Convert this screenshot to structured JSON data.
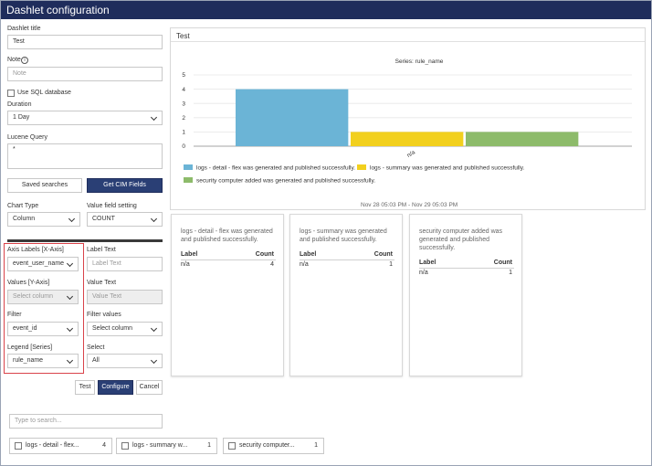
{
  "window": {
    "title": "Dashlet configuration"
  },
  "form": {
    "dashlet_title_label": "Dashlet title",
    "dashlet_title_value": "Test",
    "note_label": "Note",
    "note_placeholder": "Note",
    "help_glyph": "i",
    "use_sql_label": "Use SQL database",
    "duration_label": "Duration",
    "duration_value": "1 Day",
    "lucene_label": "Lucene Query",
    "lucene_value": "*",
    "saved_searches_label": "Saved searches",
    "get_cim_label": "Get CIM Fields",
    "chart_type_label": "Chart Type",
    "chart_type_value": "Column",
    "value_field_label": "Value field setting",
    "value_field_value": "COUNT",
    "axis_labels_label": "Axis Labels [X-Axis]",
    "axis_labels_value": "event_user_name",
    "label_text_label": "Label Text",
    "label_text_placeholder": "Label Text",
    "values_label": "Values [Y-Axis]",
    "values_value": "Select column",
    "value_text_label": "Value Text",
    "value_text_placeholder": "Value Text",
    "filter_label": "Filter",
    "filter_value": "event_id",
    "filter_values_label": "Filter values",
    "filter_values_value": "Select column",
    "legend_label": "Legend [Series]",
    "legend_value": "rule_name",
    "select_label": "Select",
    "select_value": "All",
    "test_button": "Test",
    "configure_button": "Configure",
    "cancel_button": "Cancel",
    "search_placeholder": "Type to search..."
  },
  "chips": [
    {
      "label": "logs - detail - flex...",
      "count": "4"
    },
    {
      "label": "logs - summary w...",
      "count": "1"
    },
    {
      "label": "security computer...",
      "count": "1"
    }
  ],
  "preview": {
    "title": "Test",
    "date_range": "Nov 28 05:03 PM - Nov 29 05:03 PM"
  },
  "chart_data": {
    "type": "bar",
    "title": "Series: rule_name",
    "categories": [
      "n/a"
    ],
    "series": [
      {
        "name": "logs - detail - flex was generated and published successfully.",
        "values": [
          4
        ],
        "color": "#6bb4d6"
      },
      {
        "name": "logs - summary was generated and published successfully.",
        "values": [
          1
        ],
        "color": "#f2d01e"
      },
      {
        "name": "security computer added was generated and published successfully.",
        "values": [
          1
        ],
        "color": "#8dbb6a"
      }
    ],
    "yticks": [
      "0",
      "1",
      "2",
      "3",
      "4",
      "5"
    ],
    "ylim": [
      0,
      5
    ],
    "grid": true,
    "legend_position": "bottom"
  },
  "cards": [
    {
      "title": "logs - detail - flex was generated and published successfully.",
      "col_label": "Label",
      "col_count": "Count",
      "row_label": "n/a",
      "row_count": "4"
    },
    {
      "title": "logs - summary was generated and published successfully.",
      "col_label": "Label",
      "col_count": "Count",
      "row_label": "n/a",
      "row_count": "1"
    },
    {
      "title": "security computer added was generated and published successfully.",
      "col_label": "Label",
      "col_count": "Count",
      "row_label": "n/a",
      "row_count": "1"
    }
  ]
}
